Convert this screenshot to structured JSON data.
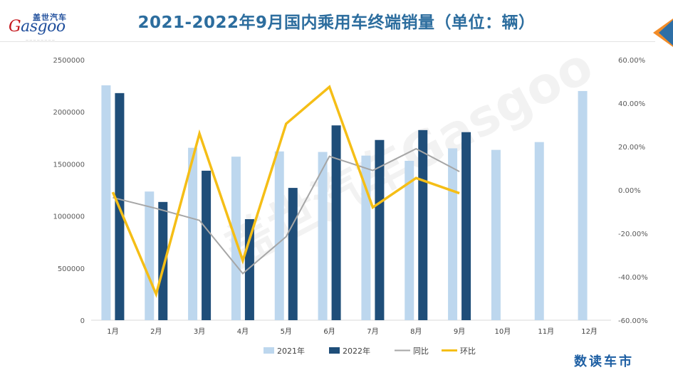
{
  "header": {
    "title": "2021-2022年9月国内乘用车终端销量（单位：辆）",
    "logo_cn": "盖世汽车",
    "logo_en_mark": "G",
    "logo_en_rest": "asgoo"
  },
  "colors": {
    "bar_2021": "#bdd7ee",
    "bar_2022": "#1f4e79",
    "line_yoy": "#a6a6a6",
    "line_mom": "#f5be16",
    "title": "#2c6d9e"
  },
  "chart_data": {
    "type": "bar",
    "title": "2021-2022年9月国内乘用车终端销量（单位：辆）",
    "categories": [
      "1月",
      "2月",
      "3月",
      "4月",
      "5月",
      "6月",
      "7月",
      "8月",
      "9月",
      "10月",
      "11月",
      "12月"
    ],
    "series": [
      {
        "name": "2021年",
        "type": "bar",
        "axis": "left",
        "values": [
          2255000,
          1235000,
          1655000,
          1570000,
          1620000,
          1615000,
          1580000,
          1530000,
          1650000,
          1635000,
          1710000,
          2200000
        ]
      },
      {
        "name": "2022年",
        "type": "bar",
        "axis": "left",
        "values": [
          2180000,
          1135000,
          1435000,
          970000,
          1270000,
          1870000,
          1730000,
          1825000,
          1805000,
          null,
          null,
          null
        ]
      },
      {
        "name": "同比",
        "type": "line",
        "axis": "right",
        "values": [
          -3.5,
          -8.5,
          -14.0,
          -38.5,
          -21.5,
          15.5,
          9.0,
          19.0,
          8.5,
          null,
          null,
          null
        ]
      },
      {
        "name": "环比",
        "type": "line",
        "axis": "right",
        "values": [
          -1.0,
          -48.0,
          26.0,
          -32.5,
          30.5,
          47.5,
          -8.0,
          5.5,
          -1.5,
          null,
          null,
          null
        ]
      }
    ],
    "y_left": {
      "min": 0,
      "max": 2500000,
      "ticks": [
        "0",
        "500000",
        "1000000",
        "1500000",
        "2000000",
        "2500000"
      ]
    },
    "y_right": {
      "min": -60,
      "max": 60,
      "ticks": [
        "-60.00%",
        "-40.00%",
        "-20.00%",
        "0.00%",
        "20.00%",
        "40.00%",
        "60.00%"
      ]
    },
    "xlabel": "",
    "ylabel": "",
    "grid": false,
    "legend_position": "bottom"
  },
  "footer": {
    "brand_mark": "数读车市"
  }
}
